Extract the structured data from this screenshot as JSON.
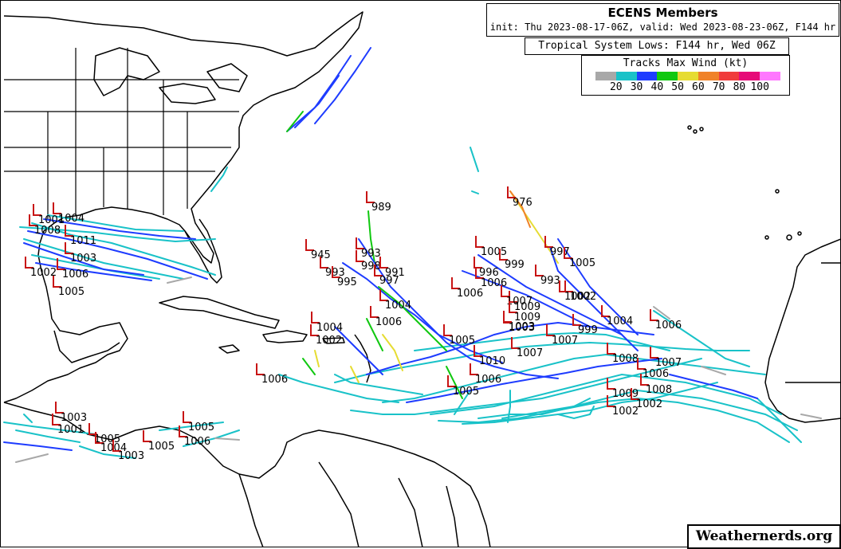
{
  "header": {
    "title": "ECENS Members",
    "subtitle": "init: Thu 2023-08-17-06Z, valid: Wed 2023-08-23-06Z, F144 hr"
  },
  "lows_label": "Tropical System Lows: F144 hr, Wed 06Z",
  "legend": {
    "title": "Tracks Max Wind (kt)",
    "colors": [
      "#a8a8a8",
      "#19c2c8",
      "#1e3cff",
      "#10c810",
      "#e6dc32",
      "#f08228",
      "#f03c3c",
      "#e60a78",
      "#ff78ff"
    ],
    "ticks": [
      "20",
      "30",
      "40",
      "50",
      "60",
      "70",
      "80",
      "100"
    ]
  },
  "credit": "Weathernerds.org",
  "colors": {
    "land_outline": "#000000",
    "ocean": "#ffffff",
    "low_marker": "#c81414",
    "track_colors": {
      "gray": "#a8a8a8",
      "cyan": "#19c2c8",
      "blue": "#1e3cff",
      "green": "#10c810",
      "yellow": "#e6dc32",
      "orange": "#f08228"
    }
  },
  "lows": [
    {
      "label": "1004"
    },
    {
      "label": "1001"
    },
    {
      "label": "1008"
    },
    {
      "label": "1011"
    },
    {
      "label": "1003"
    },
    {
      "label": "1002"
    },
    {
      "label": "1006"
    },
    {
      "label": "1005"
    },
    {
      "label": "989"
    },
    {
      "label": "976"
    },
    {
      "label": "945"
    },
    {
      "label": "993"
    },
    {
      "label": "998"
    },
    {
      "label": "991"
    },
    {
      "label": "997"
    },
    {
      "label": "993"
    },
    {
      "label": "995"
    },
    {
      "label": "1004"
    },
    {
      "label": "1006"
    },
    {
      "label": "1005"
    },
    {
      "label": "999"
    },
    {
      "label": "996"
    },
    {
      "label": "1006"
    },
    {
      "label": "1006"
    },
    {
      "label": "997"
    },
    {
      "label": "1005"
    },
    {
      "label": "993"
    },
    {
      "label": "1002"
    },
    {
      "label": "1009"
    },
    {
      "label": "1007"
    },
    {
      "label": "1009"
    },
    {
      "label": "1002"
    },
    {
      "label": "1004"
    },
    {
      "label": "1006"
    },
    {
      "label": "999"
    },
    {
      "label": "1007"
    },
    {
      "label": "1008"
    },
    {
      "label": "1003"
    },
    {
      "label": "1007"
    },
    {
      "label": "1009"
    },
    {
      "label": "1008"
    },
    {
      "label": "1002"
    },
    {
      "label": "1002"
    },
    {
      "label": "1006"
    },
    {
      "label": "1004"
    },
    {
      "label": "1002"
    },
    {
      "label": "1006"
    },
    {
      "label": "1005"
    },
    {
      "label": "1003"
    },
    {
      "label": "1010"
    },
    {
      "label": "1006"
    },
    {
      "label": "1007"
    },
    {
      "label": "1005"
    },
    {
      "label": "1003"
    },
    {
      "label": "1001"
    },
    {
      "label": "1005"
    },
    {
      "label": "1004"
    },
    {
      "label": "1005"
    },
    {
      "label": "1003"
    },
    {
      "label": "1005"
    },
    {
      "label": "1006"
    }
  ]
}
